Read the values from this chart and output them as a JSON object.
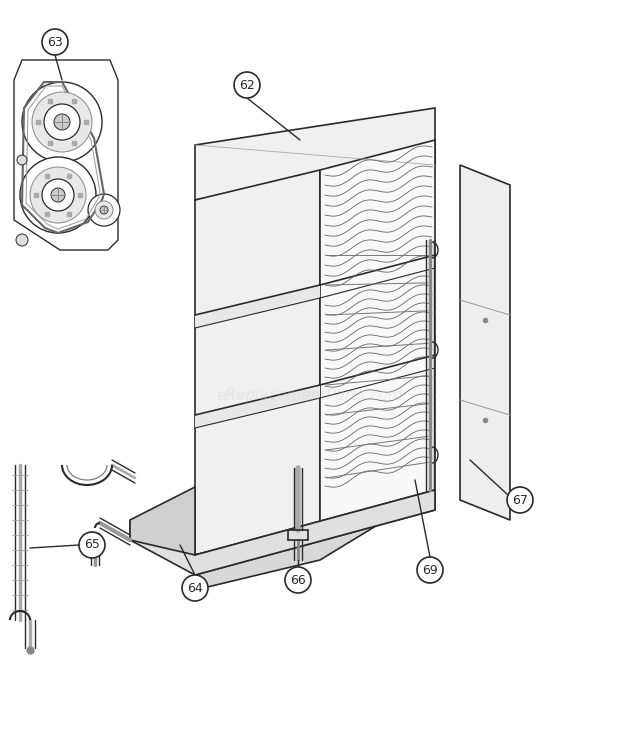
{
  "bg_color": "#ffffff",
  "line_color": "#2a2a2a",
  "light_gray": "#d8d8d8",
  "mid_gray": "#b0b0b0",
  "dark_gray": "#606060",
  "very_light": "#f0f0f0",
  "watermark_color": "#cccccc",
  "watermark_text": "eReplacementParts.com",
  "watermark_alpha": 0.3,
  "fig_width": 6.2,
  "fig_height": 7.44,
  "dpi": 100
}
